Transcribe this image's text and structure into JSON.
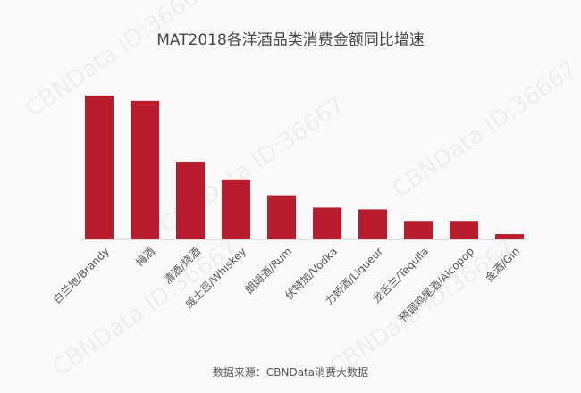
{
  "chart_data": {
    "type": "bar",
    "title": "MAT2018各洋酒品类消费金额同比增速",
    "categories": [
      "白兰地/Brandy",
      "梅酒",
      "清酒/烧酒",
      "威士忌/Whiskey",
      "朗姆酒/Rum",
      "伏特加/Vodka",
      "力娇酒/Liqueur",
      "龙舌兰/Tequila",
      "预调鸡尾酒/Alcopop",
      "金酒/Gin"
    ],
    "values": [
      163,
      157,
      88,
      68,
      50,
      36,
      34,
      21,
      21,
      6
    ],
    "ylim": [
      0,
      170
    ],
    "grid": false,
    "bar_color": "#b91c2c",
    "xlabel": "",
    "ylabel": ""
  },
  "source": "数据来源：CBNData消费大数据",
  "watermark": "CBNData ID:36667"
}
